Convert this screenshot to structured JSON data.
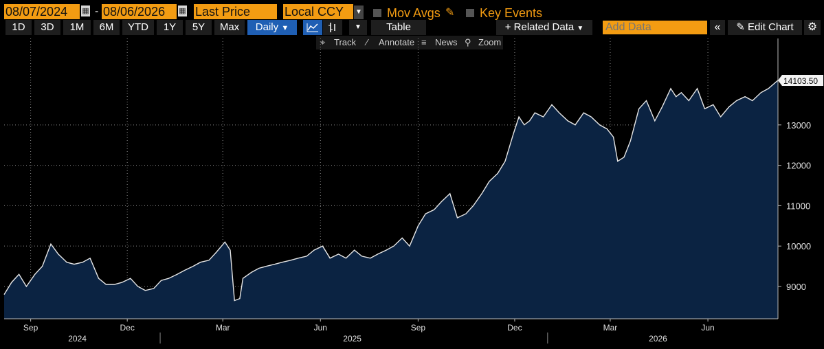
{
  "toolbar": {
    "start_date": "08/07/2024",
    "end_date": "08/06/2026",
    "date_separator": "-",
    "price_field": "Last Price",
    "currency": "Local CCY",
    "mov_avgs": "Mov Avgs",
    "key_events": "Key Events",
    "ranges": [
      "1D",
      "3D",
      "1M",
      "6M",
      "YTD",
      "1Y",
      "5Y",
      "Max"
    ],
    "frequency": "Daily",
    "table": "Table",
    "related_data": "+ Related Data",
    "add_data_placeholder": "Add Data",
    "edit_chart": "Edit Chart"
  },
  "chart_tools": {
    "track": "Track",
    "annotate": "Annotate",
    "news": "News",
    "zoom": "Zoom"
  },
  "colors": {
    "background": "#000000",
    "area_fill": "#0b2342",
    "line": "#e6e6e6",
    "accent_orange": "#f39c12",
    "active_blue": "#1f5fb4"
  },
  "chart_data": {
    "type": "area",
    "title": "",
    "xlabel": "",
    "ylabel": "",
    "ylim": [
      8200,
      14800
    ],
    "y_ticks": [
      9000,
      10000,
      11000,
      12000,
      13000
    ],
    "last_value_label": "14103.50",
    "x_tick_labels": [
      "Sep",
      "Dec",
      "Mar",
      "Jun",
      "Sep",
      "Dec",
      "Mar",
      "Jun"
    ],
    "x_tick_dates": [
      "2024-09-01",
      "2024-12-01",
      "2025-03-01",
      "2025-06-01",
      "2025-09-01",
      "2025-12-01",
      "2026-03-01",
      "2026-06-01"
    ],
    "year_labels": [
      "2024",
      "2025",
      "2026"
    ],
    "year_label_dates": [
      "2024-10-15",
      "2025-07-01",
      "2026-04-15"
    ],
    "year_boundaries": [
      "2025-01-01",
      "2026-01-01"
    ],
    "xlim": [
      "2024-08-07",
      "2026-08-06"
    ],
    "grid": true,
    "series": [
      {
        "x": [
          "2024-08-07",
          "2024-08-14",
          "2024-08-21",
          "2024-08-28",
          "2024-09-05",
          "2024-09-12",
          "2024-09-20",
          "2024-09-27",
          "2024-10-05",
          "2024-10-12",
          "2024-10-20",
          "2024-10-27",
          "2024-11-04",
          "2024-11-11",
          "2024-11-19",
          "2024-11-26",
          "2024-12-04",
          "2024-12-11",
          "2024-12-18",
          "2024-12-26",
          "2025-01-02",
          "2025-01-09",
          "2025-01-17",
          "2025-01-24",
          "2025-02-01",
          "2025-02-08",
          "2025-02-16",
          "2025-02-23",
          "2025-03-03",
          "2025-03-08",
          "2025-03-12",
          "2025-03-17",
          "2025-03-20",
          "2025-03-28",
          "2025-04-04",
          "2025-04-11",
          "2025-04-19",
          "2025-04-26",
          "2025-05-04",
          "2025-05-11",
          "2025-05-19",
          "2025-05-26",
          "2025-06-03",
          "2025-06-10",
          "2025-06-18",
          "2025-06-25",
          "2025-07-03",
          "2025-07-10",
          "2025-07-18",
          "2025-07-25",
          "2025-08-02",
          "2025-08-09",
          "2025-08-17",
          "2025-08-24",
          "2025-09-01",
          "2025-09-08",
          "2025-09-16",
          "2025-09-23",
          "2025-10-01",
          "2025-10-08",
          "2025-10-16",
          "2025-10-23",
          "2025-10-31",
          "2025-11-07",
          "2025-11-15",
          "2025-11-22",
          "2025-11-30",
          "2025-12-05",
          "2025-12-10",
          "2025-12-15",
          "2025-12-20",
          "2025-12-28",
          "2026-01-05",
          "2026-01-12",
          "2026-01-20",
          "2026-01-27",
          "2026-02-04",
          "2026-02-11",
          "2026-02-19",
          "2026-02-26",
          "2026-03-04",
          "2026-03-08",
          "2026-03-14",
          "2026-03-20",
          "2026-03-28",
          "2026-04-04",
          "2026-04-12",
          "2026-04-19",
          "2026-04-27",
          "2026-05-02",
          "2026-05-07",
          "2026-05-14",
          "2026-05-22",
          "2026-05-29",
          "2026-06-06",
          "2026-06-13",
          "2026-06-21",
          "2026-06-28",
          "2026-07-06",
          "2026-07-13",
          "2026-07-21",
          "2026-07-28",
          "2026-08-06"
        ],
        "values": [
          8800,
          9100,
          9300,
          9000,
          9300,
          9500,
          10050,
          9800,
          9600,
          9550,
          9600,
          9700,
          9200,
          9050,
          9050,
          9100,
          9200,
          9000,
          8900,
          8950,
          9150,
          9200,
          9300,
          9400,
          9500,
          9600,
          9650,
          9850,
          10100,
          9900,
          8650,
          8700,
          9200,
          9350,
          9450,
          9500,
          9550,
          9600,
          9650,
          9700,
          9750,
          9900,
          10000,
          9700,
          9800,
          9700,
          9900,
          9750,
          9700,
          9800,
          9900,
          10000,
          10200,
          10000,
          10500,
          10800,
          10900,
          11100,
          11300,
          10700,
          10800,
          11000,
          11300,
          11600,
          11800,
          12100,
          12800,
          13200,
          13000,
          13100,
          13300,
          13200,
          13500,
          13300,
          13100,
          13000,
          13300,
          13200,
          13000,
          12900,
          12700,
          12100,
          12200,
          12600,
          13400,
          13600,
          13100,
          13450,
          13900,
          13700,
          13800,
          13600,
          13900,
          13400,
          13500,
          13200,
          13450,
          13600,
          13700,
          13600,
          13800,
          13900,
          14103.5
        ]
      }
    ]
  }
}
